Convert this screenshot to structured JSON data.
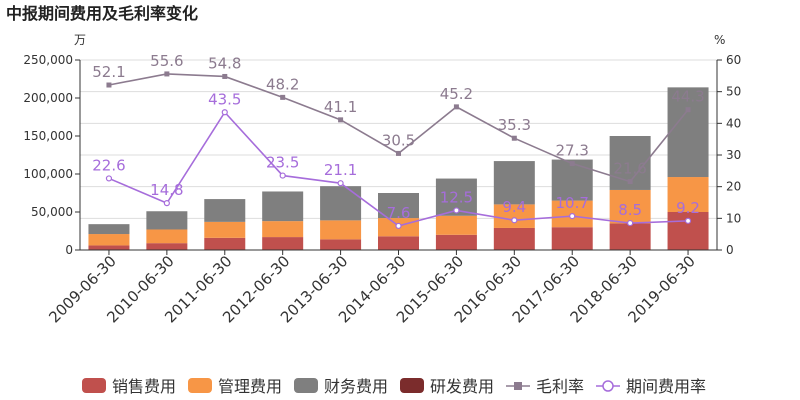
{
  "chart_data": {
    "type": "bar",
    "title": "中报期间费用及毛利率变化",
    "y_left_unit": "万",
    "y_right_unit": "%",
    "y_left_range": [
      0,
      250000
    ],
    "y_right_range": [
      0,
      60
    ],
    "y_left_ticks": [
      "0",
      "50,000",
      "100,000",
      "150,000",
      "200,000",
      "250,000"
    ],
    "y_right_ticks": [
      "0",
      "10",
      "20",
      "30",
      "40",
      "50",
      "60"
    ],
    "categories": [
      "2009-06-30",
      "2010-06-30",
      "2011-06-30",
      "2012-06-30",
      "2013-06-30",
      "2014-06-30",
      "2015-06-30",
      "2016-06-30",
      "2017-06-30",
      "2018-06-30",
      "2019-06-30"
    ],
    "stacked_series": [
      {
        "name": "销售费用",
        "color": "#c0504d",
        "values": [
          6000,
          9000,
          16000,
          17000,
          14000,
          18000,
          20000,
          29000,
          30000,
          35000,
          50000
        ]
      },
      {
        "name": "管理费用",
        "color": "#f79646",
        "values": [
          15000,
          18000,
          21000,
          21000,
          25000,
          24000,
          25000,
          31000,
          35000,
          44000,
          46000
        ]
      },
      {
        "name": "财务费用",
        "color": "#7f7f7f",
        "values": [
          13000,
          24000,
          30000,
          39000,
          45000,
          33000,
          49000,
          57000,
          54000,
          71000,
          118000
        ]
      },
      {
        "name": "研发费用",
        "color": "#7b2c2c",
        "values": [
          0,
          0,
          0,
          0,
          0,
          0,
          0,
          0,
          0,
          0,
          0
        ]
      }
    ],
    "line_series": [
      {
        "name": "毛利率",
        "color": "#8c7b8f",
        "marker": "square",
        "values": [
          52.1,
          55.6,
          54.8,
          48.2,
          41.1,
          30.5,
          45.2,
          35.3,
          27.3,
          21.6,
          44.3
        ],
        "labels": [
          "52.1",
          "55.6",
          "54.8",
          "48.2",
          "41.1",
          "30.5",
          "45.2",
          "35.3",
          "27.3",
          "21.6",
          "44.3"
        ]
      },
      {
        "name": "期间费用率",
        "color": "#a66ddb",
        "marker": "circle",
        "values": [
          22.6,
          14.8,
          43.5,
          23.5,
          21.1,
          7.6,
          12.5,
          9.4,
          10.7,
          8.5,
          9.2
        ],
        "labels": [
          "22.6",
          "14.8",
          "43.5",
          "23.5",
          "21.1",
          "7.6",
          "12.5",
          "9.4",
          "10.7",
          "8.5",
          "9.2"
        ]
      }
    ],
    "legend_position": "bottom"
  }
}
